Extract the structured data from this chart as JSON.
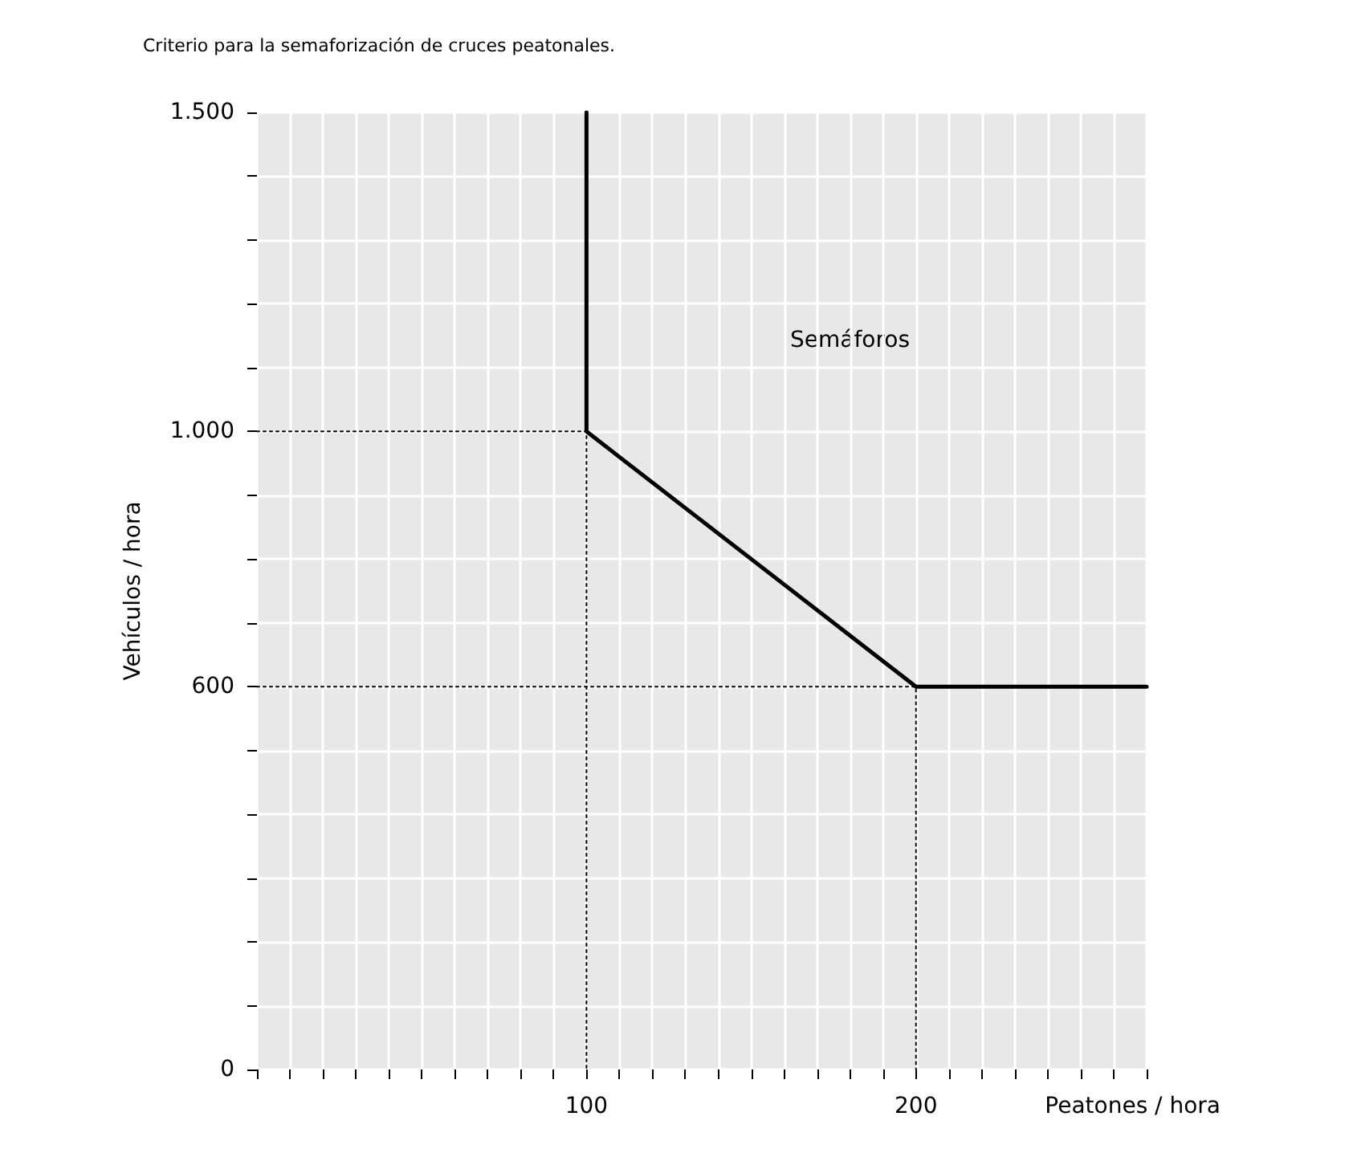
{
  "chart_data": {
    "type": "line",
    "title": "Criterio para la semaforización de cruces peatonales.",
    "xlabel": "Peatones / hora",
    "ylabel": "Vehículos / hora",
    "annotations": [
      "Semáforos"
    ],
    "series": [
      {
        "color": "#000000",
        "x": [
          100,
          100,
          200,
          270
        ],
        "values": [
          1500,
          1000,
          600,
          600
        ],
        "line_style": "solid"
      },
      {
        "color": "#000000",
        "x": [
          0,
          100,
          100
        ],
        "values": [
          1000,
          1000,
          0
        ],
        "line_style": "dotted"
      },
      {
        "color": "#000000",
        "x": [
          0,
          200,
          200
        ],
        "values": [
          600,
          600,
          0
        ],
        "line_style": "dotted"
      }
    ],
    "xlim": [
      0,
      270
    ],
    "xticks": [
      {
        "value": 0,
        "label": null
      },
      {
        "value": 10,
        "label": null
      },
      {
        "value": 20,
        "label": null
      },
      {
        "value": 30,
        "label": null
      },
      {
        "value": 40,
        "label": null
      },
      {
        "value": 50,
        "label": null
      },
      {
        "value": 60,
        "label": null
      },
      {
        "value": 70,
        "label": null
      },
      {
        "value": 80,
        "label": null
      },
      {
        "value": 90,
        "label": null
      },
      100,
      {
        "value": 110,
        "label": null
      },
      {
        "value": 120,
        "label": null
      },
      {
        "value": 130,
        "label": null
      },
      {
        "value": 140,
        "label": null
      },
      {
        "value": 150,
        "label": null
      },
      {
        "value": 160,
        "label": null
      },
      {
        "value": 170,
        "label": null
      },
      {
        "value": 180,
        "label": null
      },
      {
        "value": 190,
        "label": null
      },
      200,
      {
        "value": 210,
        "label": null
      },
      {
        "value": 220,
        "label": null
      },
      {
        "value": 230,
        "label": null
      },
      {
        "value": 240,
        "label": null
      },
      {
        "value": 250,
        "label": null
      },
      {
        "value": 260,
        "label": null
      },
      {
        "value": 270,
        "label": null
      }
    ],
    "ylim": [
      0,
      1500
    ],
    "yticks": [
      0,
      {
        "value": 100,
        "label": null
      },
      {
        "value": 200,
        "label": null
      },
      {
        "value": 300,
        "label": null
      },
      {
        "value": 400,
        "label": null
      },
      {
        "value": 500,
        "label": null
      },
      600,
      {
        "value": 700,
        "label": null
      },
      {
        "value": 800,
        "label": null
      },
      {
        "value": 900,
        "label": null
      },
      {
        "value": 1000,
        "label": "1.000"
      },
      {
        "value": 1100,
        "label": null
      },
      {
        "value": 1200,
        "label": null
      },
      {
        "value": 1300,
        "label": null
      },
      {
        "value": 1400,
        "label": null
      },
      {
        "value": 1500,
        "label": "1.500"
      }
    ],
    "grid": true,
    "marker": "none"
  }
}
